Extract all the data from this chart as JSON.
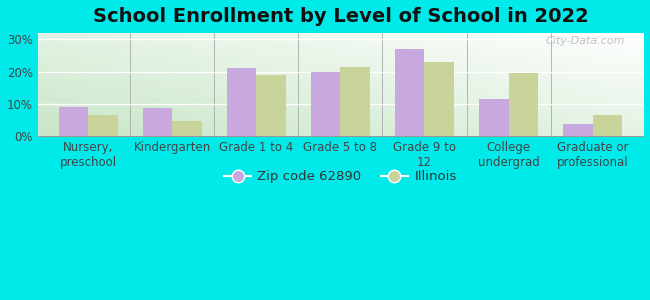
{
  "title": "School Enrollment by Level of School in 2022",
  "categories": [
    "Nursery,\npreschool",
    "Kindergarten",
    "Grade 1 to 4",
    "Grade 5 to 8",
    "Grade 9 to\n12",
    "College\nundergrad",
    "Graduate or\nprofessional"
  ],
  "zip_values": [
    9.0,
    8.5,
    21.0,
    20.0,
    27.0,
    11.5,
    3.5
  ],
  "illinois_values": [
    6.5,
    4.5,
    19.0,
    21.5,
    23.0,
    19.5,
    6.5
  ],
  "zip_color": "#c9a8e0",
  "illinois_color": "#c8d49a",
  "background_color": "#00eaea",
  "plot_bg_top_left": "#c8e6c8",
  "plot_bg_bottom_right": "#ffffff",
  "ylim": [
    0,
    32
  ],
  "yticks": [
    0,
    10,
    20,
    30
  ],
  "ytick_labels": [
    "0%",
    "10%",
    "20%",
    "30%"
  ],
  "legend_zip_label": "Zip code 62890",
  "legend_illinois_label": "Illinois",
  "watermark": "City-Data.com",
  "title_fontsize": 14,
  "tick_fontsize": 8.5,
  "legend_fontsize": 9.5,
  "bar_width": 0.35
}
